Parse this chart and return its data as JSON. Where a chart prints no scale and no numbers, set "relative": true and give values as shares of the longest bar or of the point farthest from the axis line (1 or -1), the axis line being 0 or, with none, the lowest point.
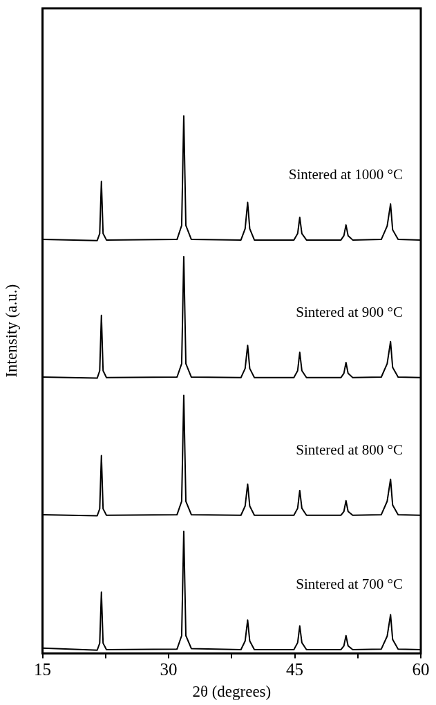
{
  "chart_data": {
    "type": "line",
    "xlabel": "2θ (degrees)",
    "ylabel": "Intensity (a.u.)",
    "relative": true,
    "xlim": [
      15,
      60
    ],
    "xticks": [
      15,
      {
        "value": 22.5,
        "label": null
      },
      30,
      {
        "value": 37.5,
        "label": null
      },
      45,
      {
        "value": 52.5,
        "label": null
      },
      60
    ],
    "grid": false,
    "legend": false,
    "marker": "none",
    "line_style": "solid",
    "x": [
      15,
      21.5,
      21.8,
      22.0,
      22.2,
      22.6,
      31.0,
      31.55,
      31.8,
      32.05,
      32.7,
      38.6,
      39.1,
      39.4,
      39.65,
      40.2,
      44.9,
      45.35,
      45.6,
      45.85,
      46.4,
      50.5,
      50.85,
      51.1,
      51.35,
      51.9,
      55.3,
      56.0,
      56.4,
      56.65,
      57.3,
      60
    ],
    "series": [
      {
        "name": "Sintered at 700 °C",
        "color": "#000000",
        "values": [
          0.01,
          0.006,
          0.019,
          0.114,
          0.019,
          0.007,
          0.008,
          0.033,
          0.227,
          0.033,
          0.009,
          0.007,
          0.023,
          0.062,
          0.023,
          0.007,
          0.007,
          0.02,
          0.051,
          0.02,
          0.007,
          0.007,
          0.014,
          0.033,
          0.014,
          0.007,
          0.008,
          0.032,
          0.072,
          0.026,
          0.008,
          0.007
        ]
      },
      {
        "name": "Sintered at 800 °C",
        "color": "#000000",
        "values": [
          0.258,
          0.256,
          0.269,
          0.368,
          0.269,
          0.257,
          0.258,
          0.283,
          0.48,
          0.283,
          0.258,
          0.257,
          0.274,
          0.315,
          0.274,
          0.257,
          0.257,
          0.27,
          0.303,
          0.27,
          0.257,
          0.257,
          0.264,
          0.284,
          0.264,
          0.257,
          0.258,
          0.283,
          0.324,
          0.276,
          0.258,
          0.257
        ]
      },
      {
        "name": "Sintered at 900 °C",
        "color": "#000000",
        "values": [
          0.514,
          0.512,
          0.526,
          0.629,
          0.526,
          0.513,
          0.514,
          0.539,
          0.738,
          0.539,
          0.514,
          0.513,
          0.53,
          0.573,
          0.53,
          0.513,
          0.513,
          0.526,
          0.56,
          0.526,
          0.513,
          0.513,
          0.521,
          0.541,
          0.521,
          0.513,
          0.514,
          0.539,
          0.58,
          0.532,
          0.514,
          0.513
        ]
      },
      {
        "name": "Sintered at 1000 °C",
        "color": "#000000",
        "values": [
          0.77,
          0.768,
          0.781,
          0.878,
          0.781,
          0.769,
          0.77,
          0.796,
          1.0,
          0.796,
          0.77,
          0.769,
          0.79,
          0.839,
          0.79,
          0.769,
          0.769,
          0.781,
          0.811,
          0.781,
          0.769,
          0.769,
          0.777,
          0.797,
          0.777,
          0.769,
          0.77,
          0.795,
          0.836,
          0.788,
          0.77,
          0.769
        ]
      }
    ]
  }
}
